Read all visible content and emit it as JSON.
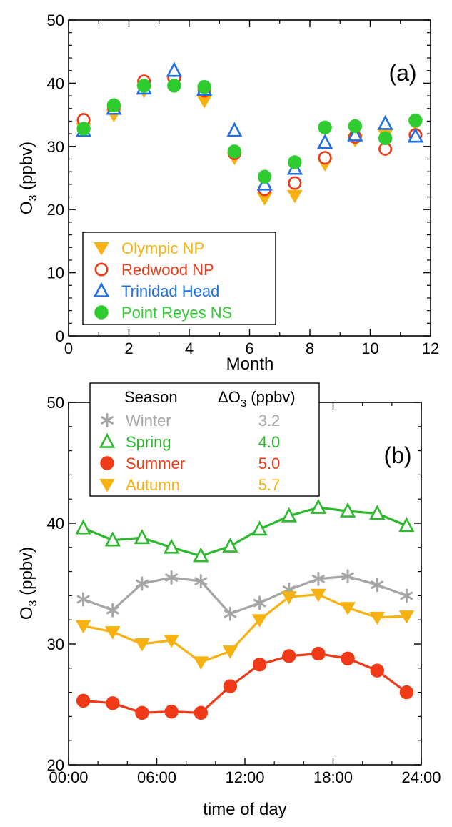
{
  "chart_data": [
    {
      "type": "scatter",
      "panel_label": "(a)",
      "xlabel": "Month",
      "ylabel_main": "O",
      "ylabel_sub": "3",
      "ylabel_unit": " (ppbv)",
      "xlim": [
        0,
        12
      ],
      "ylim": [
        0,
        50
      ],
      "x_ticks": [
        0,
        2,
        4,
        6,
        8,
        10,
        12
      ],
      "y_ticks": [
        0,
        10,
        20,
        30,
        40,
        50
      ],
      "legend_position": "bottom-left",
      "x": [
        0.5,
        1.5,
        2.5,
        3.5,
        4.5,
        5.5,
        6.5,
        7.5,
        8.5,
        9.5,
        10.5,
        11.5
      ],
      "series": [
        {
          "name": "Olympic NP",
          "marker": "triangle-down",
          "color": "#F7B211",
          "values": [
            32.8,
            35.0,
            38.8,
            40.0,
            37.2,
            28.2,
            21.8,
            22.2,
            27.2,
            31.0,
            31.8,
            33.5
          ]
        },
        {
          "name": "Redwood NP",
          "marker": "circle-open",
          "color": "#F03A17",
          "values": [
            34.2,
            36.2,
            40.3,
            40.8,
            38.8,
            28.9,
            23.2,
            24.2,
            28.2,
            31.5,
            29.6,
            31.8
          ]
        },
        {
          "name": "Trinidad Head",
          "marker": "triangle-up-open",
          "color": "#1F6FE5",
          "values": [
            32.5,
            36.0,
            39.2,
            42.0,
            39.0,
            32.5,
            24.0,
            26.5,
            30.6,
            31.8,
            33.6,
            31.6
          ]
        },
        {
          "name": "Point Reyes NS",
          "marker": "circle",
          "color": "#2ECC2E",
          "values": [
            32.8,
            36.5,
            39.6,
            39.6,
            39.4,
            29.2,
            25.2,
            27.5,
            33.0,
            33.2,
            31.3,
            34.1
          ]
        }
      ]
    },
    {
      "type": "line",
      "panel_label": "(b)",
      "xlabel": "time of day",
      "ylabel_main": "O",
      "ylabel_sub": "3",
      "ylabel_unit": " (ppbv)",
      "xlim": [
        0,
        24
      ],
      "ylim": [
        20,
        50
      ],
      "x_ticks": [
        0,
        6,
        12,
        18,
        24
      ],
      "x_tick_labels": [
        "00:00",
        "06:00",
        "12:00",
        "18:00",
        "24:00"
      ],
      "y_ticks": [
        20,
        30,
        40,
        50
      ],
      "legend_position": "top-left",
      "legend_header": {
        "season": "Season",
        "delta_main": "ΔO",
        "delta_sub": "3",
        "delta_unit": " (ppbv)"
      },
      "x": [
        1,
        3,
        5,
        7,
        9,
        11,
        13,
        15,
        17,
        19,
        21,
        23
      ],
      "series": [
        {
          "name": "Winter",
          "delta": "3.2",
          "marker": "asterisk",
          "color": "#A6A6A6",
          "values": [
            33.7,
            32.8,
            35.0,
            35.5,
            35.2,
            32.5,
            33.4,
            34.5,
            35.4,
            35.6,
            34.9,
            34.0
          ]
        },
        {
          "name": "Spring",
          "delta": "4.0",
          "marker": "triangle-up-open",
          "color": "#2DB82D",
          "values": [
            39.6,
            38.6,
            38.8,
            38.0,
            37.3,
            38.1,
            39.5,
            40.6,
            41.3,
            41.0,
            40.8,
            39.8
          ]
        },
        {
          "name": "Summer",
          "delta": "5.0",
          "marker": "circle",
          "color": "#F03A17",
          "values": [
            25.3,
            25.1,
            24.3,
            24.4,
            24.3,
            26.5,
            28.3,
            29.0,
            29.2,
            28.8,
            27.8,
            26.0
          ]
        },
        {
          "name": "Autumn",
          "delta": "5.7",
          "marker": "triangle-down",
          "color": "#F7B211",
          "values": [
            31.5,
            31.0,
            30.0,
            30.3,
            28.5,
            29.4,
            32.0,
            33.9,
            34.1,
            33.0,
            32.2,
            32.3
          ]
        }
      ]
    }
  ]
}
